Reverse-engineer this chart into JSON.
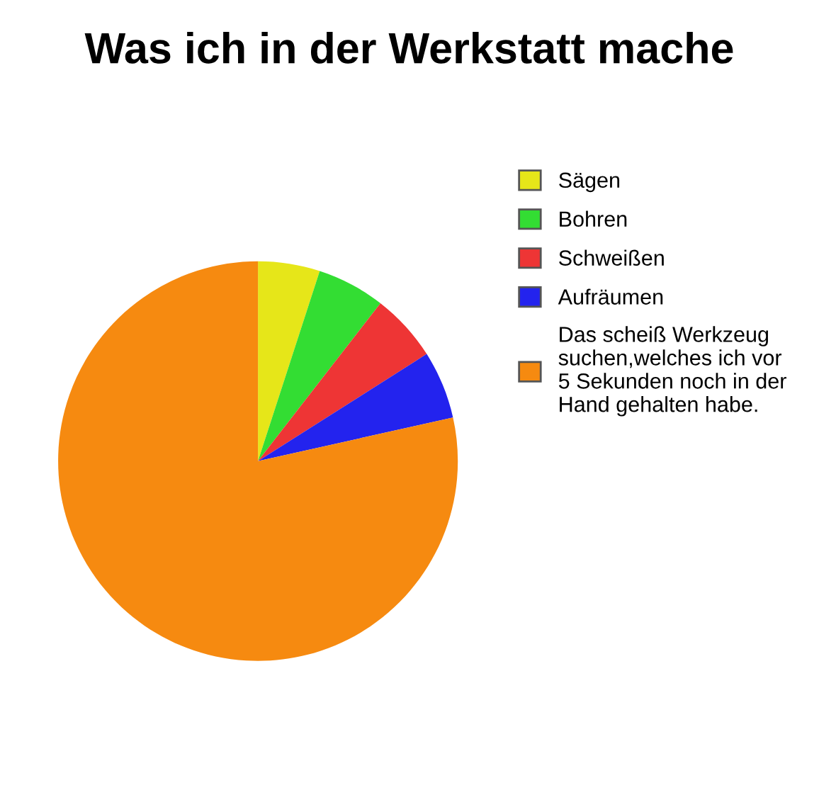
{
  "chart_data": {
    "type": "pie",
    "title": "Was ich in der Werkstatt mache",
    "categories": [
      "Sägen",
      "Bohren",
      "Schweißen",
      "Aufräumen",
      "Das scheiß Werkzeug\nsuchen,welches ich vor\n5 Sekunden noch in der\nHand gehalten habe."
    ],
    "values": [
      5,
      5.5,
      5.5,
      5.5,
      78.5
    ],
    "colors": [
      "#e6e619",
      "#33dd33",
      "#ee3535",
      "#2323ee",
      "#f68a10"
    ],
    "legend": "right"
  }
}
